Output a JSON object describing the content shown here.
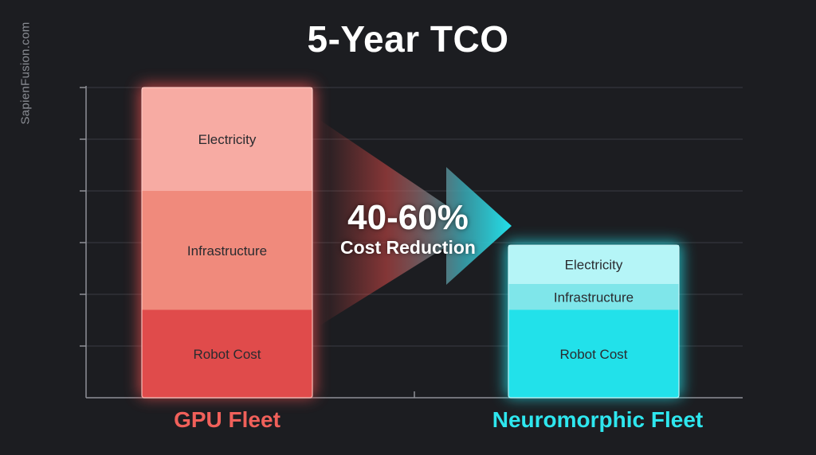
{
  "title": "5-Year TCO",
  "watermark": "SapienFusion.com",
  "annotation": {
    "value": "40-60%",
    "label": "Cost Reduction"
  },
  "colors": {
    "background": "#1c1d21",
    "gpu_electricity": "#f7aba3",
    "gpu_infrastructure": "#f08a7c",
    "gpu_robot": "#e04b4b",
    "neuro_electricity": "#b5f5f7",
    "neuro_infrastructure": "#7fe6ea",
    "neuro_robot": "#22e1ea",
    "gpu_label": "#f0605a",
    "neuro_label": "#2ee6ee"
  },
  "chart_data": {
    "type": "bar",
    "stacked": true,
    "title": "5-Year TCO",
    "categories": [
      "GPU Fleet",
      "Neuromorphic Fleet"
    ],
    "series": [
      {
        "name": "Robot Cost",
        "values": [
          1.7,
          1.7
        ]
      },
      {
        "name": "Infrastructure",
        "values": [
          2.3,
          0.5
        ]
      },
      {
        "name": "Electricity",
        "values": [
          2.0,
          0.75
        ]
      }
    ],
    "ylim": [
      0,
      6
    ],
    "grid": true,
    "legend": "none"
  }
}
